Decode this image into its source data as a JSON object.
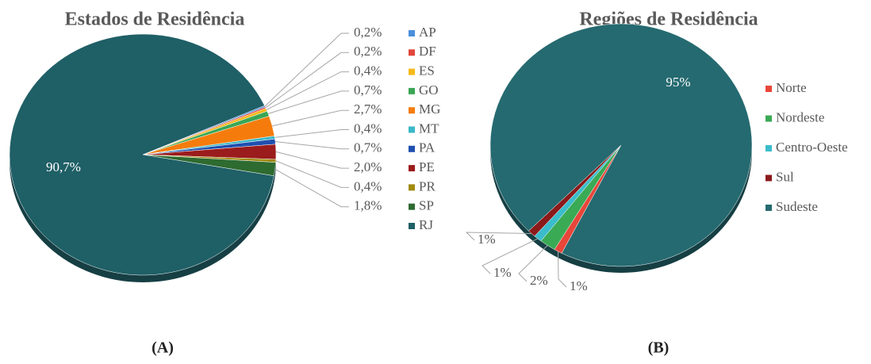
{
  "chart_data": [
    {
      "type": "pie",
      "title": "Estados de Residência",
      "caption": "(A)",
      "categories": [
        "AP",
        "DF",
        "ES",
        "GO",
        "MG",
        "MT",
        "PA",
        "PE",
        "PR",
        "SP",
        "RJ"
      ],
      "values": [
        0.2,
        0.2,
        0.4,
        0.7,
        2.7,
        0.4,
        0.7,
        2.0,
        0.4,
        1.8,
        90.7
      ],
      "value_labels": [
        "0,2%",
        "0,2%",
        "0,4%",
        "0,7%",
        "2,7%",
        "0,4%",
        "0,7%",
        "2,0%",
        "0,4%",
        "1,8%",
        "90,7%"
      ],
      "colors": [
        "#4a8fdc",
        "#e2463c",
        "#f5b91a",
        "#3aa655",
        "#f57c0c",
        "#3bb8c8",
        "#1f4fb0",
        "#9b1c1c",
        "#a08a10",
        "#2e6b30",
        "#1f5f66"
      ]
    },
    {
      "type": "pie",
      "title": "Regiões de Residência",
      "caption": "(B)",
      "categories": [
        "Norte",
        "Nordeste",
        "Centro-Oeste",
        "Sul",
        "Sudeste"
      ],
      "values": [
        1,
        2,
        1,
        1,
        95
      ],
      "value_labels": [
        "1%",
        "2%",
        "1%",
        "1%",
        "95%"
      ],
      "colors": [
        "#e8463a",
        "#3aaa55",
        "#3bbccc",
        "#8b1a1a",
        "#256a70"
      ]
    }
  ]
}
